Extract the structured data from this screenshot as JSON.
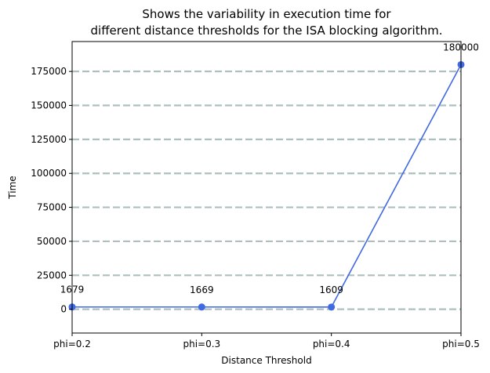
{
  "chart_data": {
    "type": "line",
    "title_lines": [
      "Shows the variability in execution time for",
      "different distance thresholds for the ISA blocking algorithm."
    ],
    "xlabel": "Distance Threshold",
    "ylabel": "Time",
    "categories": [
      "phi=0.2",
      "phi=0.3",
      "phi=0.4",
      "phi=0.5"
    ],
    "values": [
      1679,
      1669,
      1609,
      180000
    ],
    "data_labels": [
      "1679",
      "1669",
      "1609",
      "180000"
    ],
    "yticks": [
      0,
      25000,
      50000,
      75000,
      100000,
      125000,
      150000,
      175000
    ],
    "ytick_labels": [
      "0",
      "25000",
      "50000",
      "75000",
      "100000",
      "125000",
      "150000",
      "175000"
    ],
    "ylim": [
      -17500,
      197000
    ],
    "grid": "horizontal dashed",
    "line_color": "#4169e1",
    "grid_color": "#aebfbf"
  }
}
